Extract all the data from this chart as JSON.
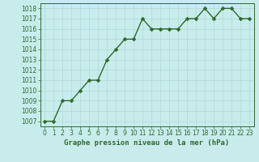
{
  "x": [
    0,
    1,
    2,
    3,
    4,
    5,
    6,
    7,
    8,
    9,
    10,
    11,
    12,
    13,
    14,
    15,
    16,
    17,
    18,
    19,
    20,
    21,
    22,
    23
  ],
  "y": [
    1007,
    1007,
    1009,
    1009,
    1010,
    1011,
    1011,
    1013,
    1014,
    1015,
    1015,
    1017,
    1016,
    1016,
    1016,
    1016,
    1017,
    1017,
    1018,
    1017,
    1018,
    1018,
    1017,
    1017
  ],
  "line_color": "#2d6a2d",
  "marker_color": "#2d6a2d",
  "bg_color": "#c8ecec",
  "grid_color": "#b0d8d8",
  "xlabel": "Graphe pression niveau de la mer (hPa)",
  "xlabel_color": "#2d6a2d",
  "tick_color": "#2d6a2d",
  "spine_color": "#2d6a2d",
  "ylim": [
    1006.5,
    1018.5
  ],
  "xlim": [
    -0.5,
    23.5
  ],
  "yticks": [
    1007,
    1008,
    1009,
    1010,
    1011,
    1012,
    1013,
    1014,
    1015,
    1016,
    1017,
    1018
  ],
  "xticks": [
    0,
    1,
    2,
    3,
    4,
    5,
    6,
    7,
    8,
    9,
    10,
    11,
    12,
    13,
    14,
    15,
    16,
    17,
    18,
    19,
    20,
    21,
    22,
    23
  ],
  "tick_fontsize": 5.5,
  "xlabel_fontsize": 6.5,
  "line_width": 1.0,
  "marker_size": 2.5
}
